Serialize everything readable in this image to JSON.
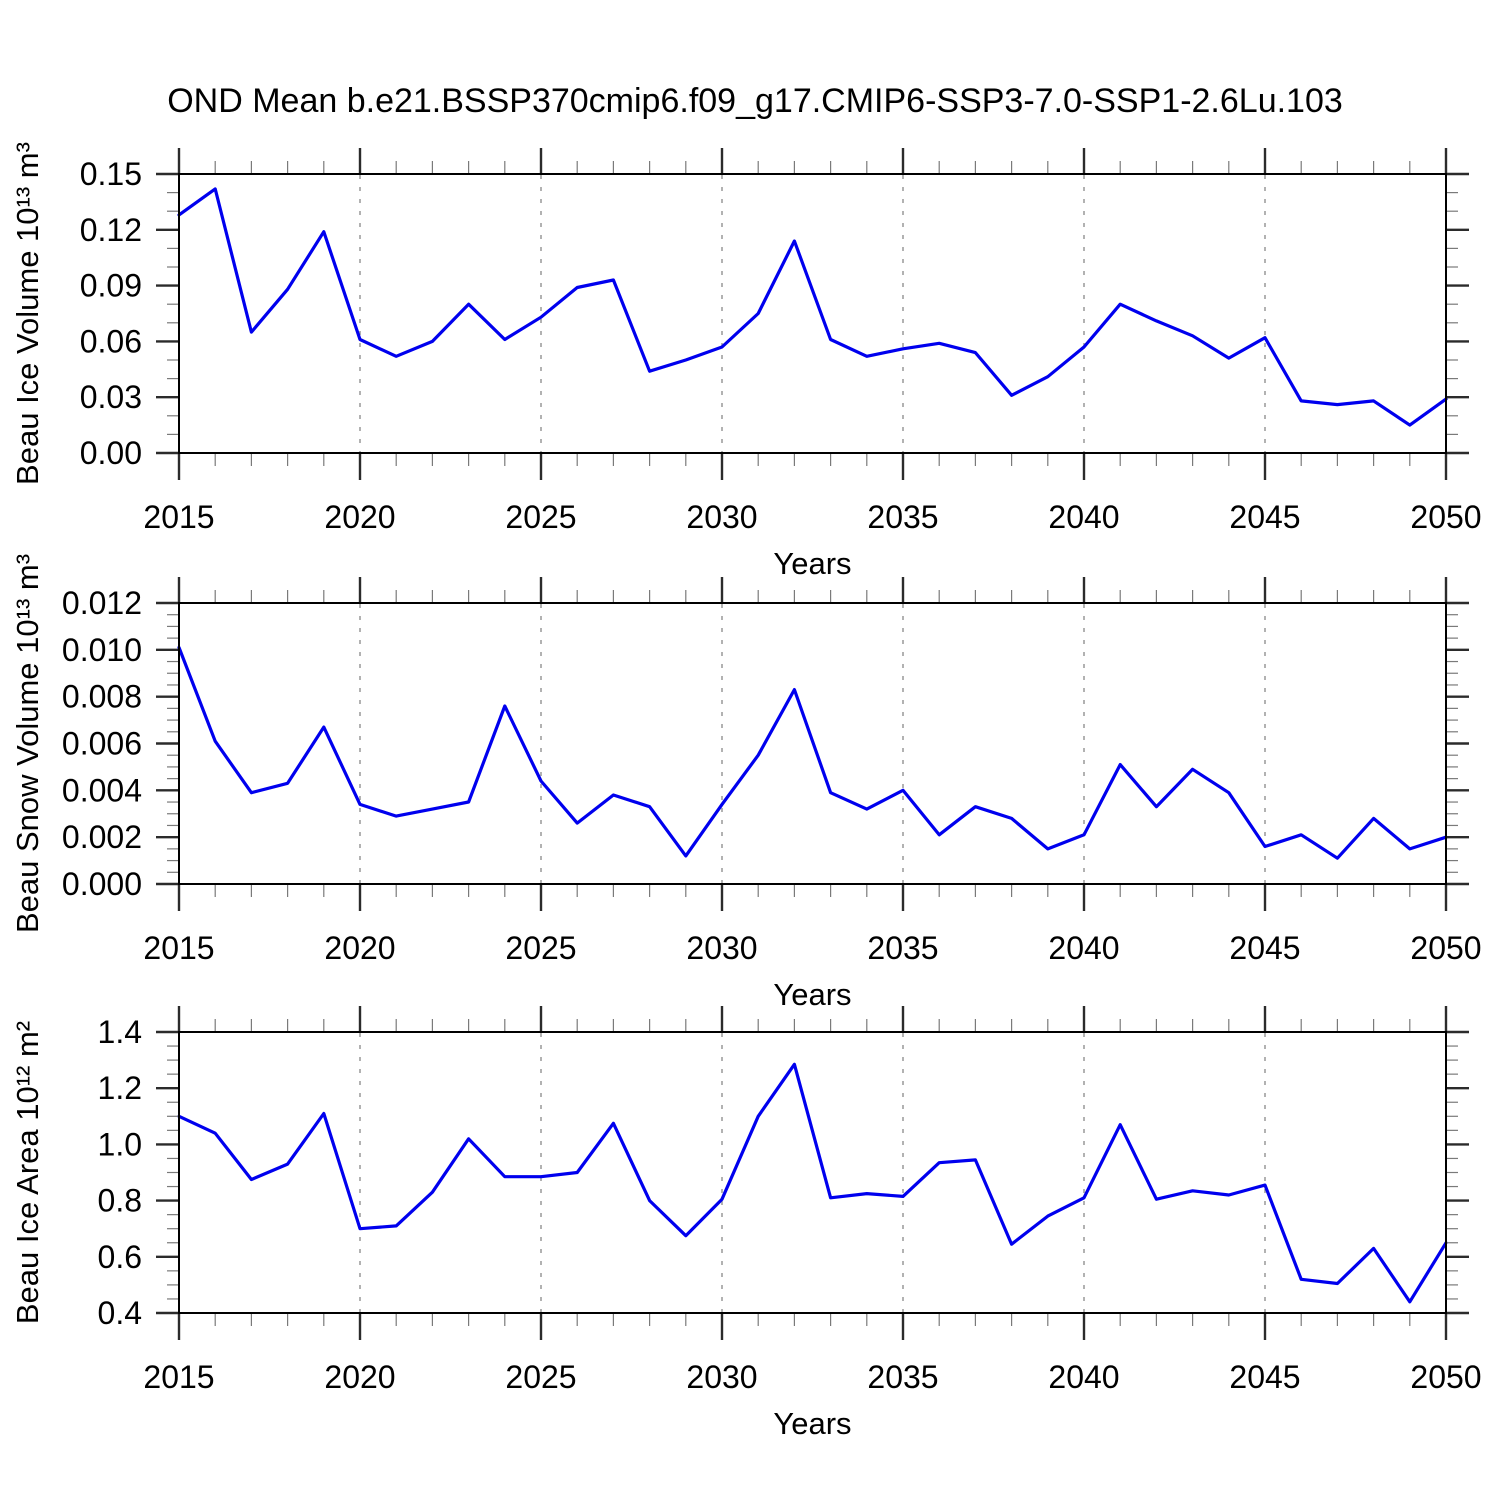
{
  "title": "OND Mean b.e21.BSSP370cmip6.f09_g17.CMIP6-SSP3-7.0-SSP1-2.6Lu.103",
  "colors": {
    "line": "#0000ee",
    "border": "#000000",
    "major_tick": "#2b2b2b",
    "minor_tick": "#7a7a7a",
    "gridline": "#999999",
    "text": "#000000",
    "background": "#ffffff"
  },
  "axis": {
    "x_label": "Years",
    "x_range": [
      2015,
      2050
    ],
    "x_major_step": 5,
    "x_minor_step": 1,
    "x_tick_labels": [
      "2015",
      "2020",
      "2025",
      "2030",
      "2035",
      "2040",
      "2045",
      "2050"
    ],
    "gridline_years": [
      2020,
      2025,
      2030,
      2035,
      2040,
      2045
    ]
  },
  "years": [
    2015,
    2016,
    2017,
    2018,
    2019,
    2020,
    2021,
    2022,
    2023,
    2024,
    2025,
    2026,
    2027,
    2028,
    2029,
    2030,
    2031,
    2032,
    2033,
    2034,
    2035,
    2036,
    2037,
    2038,
    2039,
    2040,
    2041,
    2042,
    2043,
    2044,
    2045,
    2046,
    2047,
    2048,
    2049,
    2050
  ],
  "chart_data": [
    {
      "type": "line",
      "title": "",
      "xlabel": "Years",
      "ylabel": "Beau Ice Volume 10¹³ m³",
      "ylim": [
        0,
        0.15
      ],
      "ytick_major_step": 0.03,
      "ytick_minor_step": 0.01,
      "ytick_labels": [
        "0.00",
        "0.03",
        "0.06",
        "0.09",
        "0.12",
        "0.15"
      ],
      "grid": "vertical-dashed",
      "legend_position": "none",
      "series": [
        {
          "name": "Beau Ice Volume",
          "values": [
            0.128,
            0.142,
            0.065,
            0.088,
            0.119,
            0.061,
            0.052,
            0.06,
            0.08,
            0.061,
            0.073,
            0.089,
            0.093,
            0.044,
            0.05,
            0.057,
            0.075,
            0.114,
            0.061,
            0.052,
            0.056,
            0.059,
            0.054,
            0.031,
            0.041,
            0.057,
            0.08,
            0.071,
            0.063,
            0.051,
            0.062,
            0.028,
            0.026,
            0.028,
            0.015,
            0.029
          ]
        }
      ]
    },
    {
      "type": "line",
      "title": "",
      "xlabel": "Years",
      "ylabel": "Beau Snow Volume 10¹³ m³",
      "ylim": [
        0,
        0.012
      ],
      "ytick_major_step": 0.002,
      "ytick_minor_step": 0.0005,
      "ytick_labels": [
        "0.000",
        "0.002",
        "0.004",
        "0.006",
        "0.008",
        "0.010",
        "0.012"
      ],
      "grid": "vertical-dashed",
      "legend_position": "none",
      "series": [
        {
          "name": "Beau Snow Volume",
          "values": [
            0.0101,
            0.0061,
            0.0039,
            0.0043,
            0.0067,
            0.0034,
            0.0029,
            0.0032,
            0.0035,
            0.0076,
            0.0044,
            0.0026,
            0.0038,
            0.0033,
            0.0012,
            0.0034,
            0.0055,
            0.0083,
            0.0039,
            0.0032,
            0.004,
            0.0021,
            0.0033,
            0.0028,
            0.0015,
            0.0021,
            0.0051,
            0.0033,
            0.0049,
            0.0039,
            0.0016,
            0.0021,
            0.0011,
            0.0028,
            0.0015,
            0.002
          ]
        }
      ]
    },
    {
      "type": "line",
      "title": "",
      "xlabel": "Years",
      "ylabel": "Beau Ice Area 10¹² m²",
      "ylim": [
        0.4,
        1.4
      ],
      "ytick_major_step": 0.2,
      "ytick_minor_step": 0.05,
      "ytick_labels": [
        "0.4",
        "0.6",
        "0.8",
        "1.0",
        "1.2",
        "1.4"
      ],
      "grid": "vertical-dashed",
      "legend_position": "none",
      "series": [
        {
          "name": "Beau Ice Area",
          "values": [
            1.1,
            1.04,
            0.875,
            0.93,
            1.11,
            0.7,
            0.71,
            0.83,
            1.02,
            0.885,
            0.885,
            0.9,
            1.075,
            0.8,
            0.675,
            0.805,
            1.1,
            1.285,
            0.81,
            0.825,
            0.815,
            0.935,
            0.945,
            0.645,
            0.745,
            0.81,
            1.07,
            0.805,
            0.835,
            0.82,
            0.855,
            0.52,
            0.505,
            0.63,
            0.44,
            0.65
          ]
        }
      ]
    }
  ]
}
